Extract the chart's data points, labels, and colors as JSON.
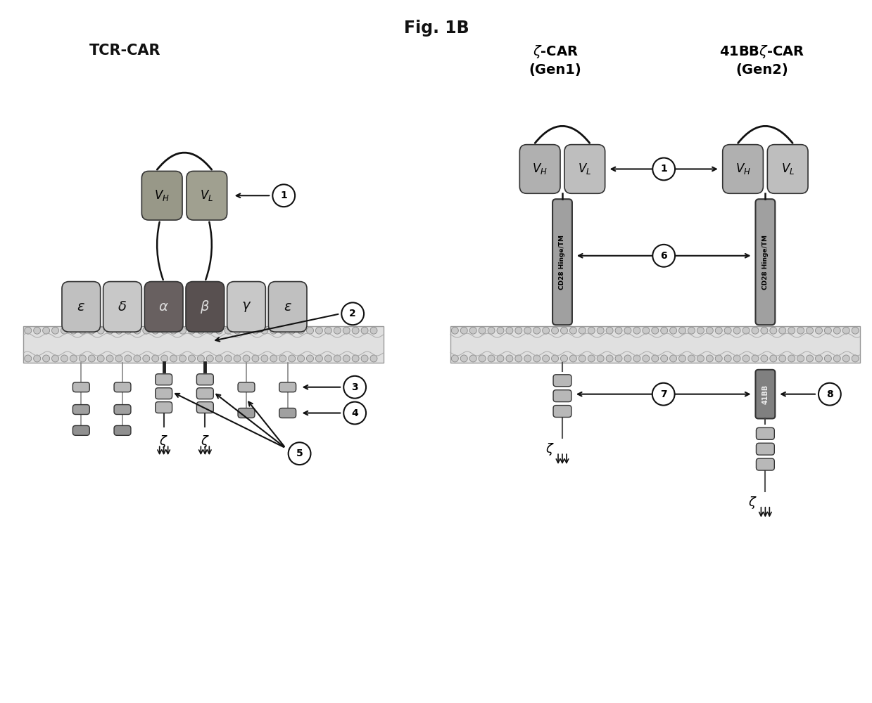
{
  "title": "Fig. 1B",
  "bg_color": "#ffffff",
  "tcr_label": "TCR-CAR",
  "zcar_label": "ζ-CAR\n(Gen1)",
  "bbzcar_label": "41BBζ-CAR\n(Gen2)",
  "gray_light": "#c8c8c8",
  "gray_medium": "#a8a8a8",
  "gray_dark": "#686868",
  "gray_darker": "#505050",
  "gray_box_eps": "#c0c0c0",
  "gray_box_alpha": "#686060",
  "gray_box_beta": "#585050",
  "gray_vh": "#aaaaaa",
  "gray_vl": "#b8b8b8",
  "gray_cd28": "#a0a0a0",
  "gray_41bb": "#808080",
  "gray_itam": "#b0b0b0",
  "black": "#111111",
  "white": "#ffffff"
}
